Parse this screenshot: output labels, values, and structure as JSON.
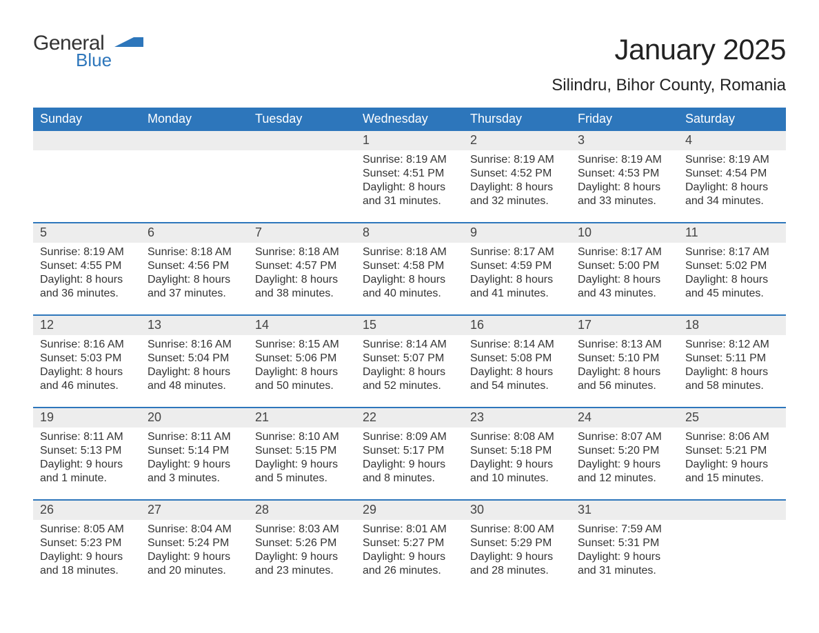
{
  "brand": {
    "word1": "General",
    "word2": "Blue",
    "text_color": "#333333",
    "accent_color": "#2d76bb",
    "icon_color": "#2d76bb"
  },
  "title": "January 2025",
  "location": "Silindru, Bihor County, Romania",
  "colors": {
    "header_bg": "#2d76bb",
    "header_text": "#ffffff",
    "daynum_bg": "#ededed",
    "body_bg": "#ffffff",
    "text": "#333333",
    "rule": "#2d76bb"
  },
  "typography": {
    "title_fontsize": 42,
    "location_fontsize": 24,
    "weekday_fontsize": 18,
    "daynum_fontsize": 18,
    "body_fontsize": 16
  },
  "weekdays": [
    "Sunday",
    "Monday",
    "Tuesday",
    "Wednesday",
    "Thursday",
    "Friday",
    "Saturday"
  ],
  "weeks": [
    [
      {
        "n": "",
        "lines": [
          "",
          "",
          "",
          ""
        ]
      },
      {
        "n": "",
        "lines": [
          "",
          "",
          "",
          ""
        ]
      },
      {
        "n": "",
        "lines": [
          "",
          "",
          "",
          ""
        ]
      },
      {
        "n": "1",
        "lines": [
          "Sunrise: 8:19 AM",
          "Sunset: 4:51 PM",
          "Daylight: 8 hours",
          "and 31 minutes."
        ]
      },
      {
        "n": "2",
        "lines": [
          "Sunrise: 8:19 AM",
          "Sunset: 4:52 PM",
          "Daylight: 8 hours",
          "and 32 minutes."
        ]
      },
      {
        "n": "3",
        "lines": [
          "Sunrise: 8:19 AM",
          "Sunset: 4:53 PM",
          "Daylight: 8 hours",
          "and 33 minutes."
        ]
      },
      {
        "n": "4",
        "lines": [
          "Sunrise: 8:19 AM",
          "Sunset: 4:54 PM",
          "Daylight: 8 hours",
          "and 34 minutes."
        ]
      }
    ],
    [
      {
        "n": "5",
        "lines": [
          "Sunrise: 8:19 AM",
          "Sunset: 4:55 PM",
          "Daylight: 8 hours",
          "and 36 minutes."
        ]
      },
      {
        "n": "6",
        "lines": [
          "Sunrise: 8:18 AM",
          "Sunset: 4:56 PM",
          "Daylight: 8 hours",
          "and 37 minutes."
        ]
      },
      {
        "n": "7",
        "lines": [
          "Sunrise: 8:18 AM",
          "Sunset: 4:57 PM",
          "Daylight: 8 hours",
          "and 38 minutes."
        ]
      },
      {
        "n": "8",
        "lines": [
          "Sunrise: 8:18 AM",
          "Sunset: 4:58 PM",
          "Daylight: 8 hours",
          "and 40 minutes."
        ]
      },
      {
        "n": "9",
        "lines": [
          "Sunrise: 8:17 AM",
          "Sunset: 4:59 PM",
          "Daylight: 8 hours",
          "and 41 minutes."
        ]
      },
      {
        "n": "10",
        "lines": [
          "Sunrise: 8:17 AM",
          "Sunset: 5:00 PM",
          "Daylight: 8 hours",
          "and 43 minutes."
        ]
      },
      {
        "n": "11",
        "lines": [
          "Sunrise: 8:17 AM",
          "Sunset: 5:02 PM",
          "Daylight: 8 hours",
          "and 45 minutes."
        ]
      }
    ],
    [
      {
        "n": "12",
        "lines": [
          "Sunrise: 8:16 AM",
          "Sunset: 5:03 PM",
          "Daylight: 8 hours",
          "and 46 minutes."
        ]
      },
      {
        "n": "13",
        "lines": [
          "Sunrise: 8:16 AM",
          "Sunset: 5:04 PM",
          "Daylight: 8 hours",
          "and 48 minutes."
        ]
      },
      {
        "n": "14",
        "lines": [
          "Sunrise: 8:15 AM",
          "Sunset: 5:06 PM",
          "Daylight: 8 hours",
          "and 50 minutes."
        ]
      },
      {
        "n": "15",
        "lines": [
          "Sunrise: 8:14 AM",
          "Sunset: 5:07 PM",
          "Daylight: 8 hours",
          "and 52 minutes."
        ]
      },
      {
        "n": "16",
        "lines": [
          "Sunrise: 8:14 AM",
          "Sunset: 5:08 PM",
          "Daylight: 8 hours",
          "and 54 minutes."
        ]
      },
      {
        "n": "17",
        "lines": [
          "Sunrise: 8:13 AM",
          "Sunset: 5:10 PM",
          "Daylight: 8 hours",
          "and 56 minutes."
        ]
      },
      {
        "n": "18",
        "lines": [
          "Sunrise: 8:12 AM",
          "Sunset: 5:11 PM",
          "Daylight: 8 hours",
          "and 58 minutes."
        ]
      }
    ],
    [
      {
        "n": "19",
        "lines": [
          "Sunrise: 8:11 AM",
          "Sunset: 5:13 PM",
          "Daylight: 9 hours",
          "and 1 minute."
        ]
      },
      {
        "n": "20",
        "lines": [
          "Sunrise: 8:11 AM",
          "Sunset: 5:14 PM",
          "Daylight: 9 hours",
          "and 3 minutes."
        ]
      },
      {
        "n": "21",
        "lines": [
          "Sunrise: 8:10 AM",
          "Sunset: 5:15 PM",
          "Daylight: 9 hours",
          "and 5 minutes."
        ]
      },
      {
        "n": "22",
        "lines": [
          "Sunrise: 8:09 AM",
          "Sunset: 5:17 PM",
          "Daylight: 9 hours",
          "and 8 minutes."
        ]
      },
      {
        "n": "23",
        "lines": [
          "Sunrise: 8:08 AM",
          "Sunset: 5:18 PM",
          "Daylight: 9 hours",
          "and 10 minutes."
        ]
      },
      {
        "n": "24",
        "lines": [
          "Sunrise: 8:07 AM",
          "Sunset: 5:20 PM",
          "Daylight: 9 hours",
          "and 12 minutes."
        ]
      },
      {
        "n": "25",
        "lines": [
          "Sunrise: 8:06 AM",
          "Sunset: 5:21 PM",
          "Daylight: 9 hours",
          "and 15 minutes."
        ]
      }
    ],
    [
      {
        "n": "26",
        "lines": [
          "Sunrise: 8:05 AM",
          "Sunset: 5:23 PM",
          "Daylight: 9 hours",
          "and 18 minutes."
        ]
      },
      {
        "n": "27",
        "lines": [
          "Sunrise: 8:04 AM",
          "Sunset: 5:24 PM",
          "Daylight: 9 hours",
          "and 20 minutes."
        ]
      },
      {
        "n": "28",
        "lines": [
          "Sunrise: 8:03 AM",
          "Sunset: 5:26 PM",
          "Daylight: 9 hours",
          "and 23 minutes."
        ]
      },
      {
        "n": "29",
        "lines": [
          "Sunrise: 8:01 AM",
          "Sunset: 5:27 PM",
          "Daylight: 9 hours",
          "and 26 minutes."
        ]
      },
      {
        "n": "30",
        "lines": [
          "Sunrise: 8:00 AM",
          "Sunset: 5:29 PM",
          "Daylight: 9 hours",
          "and 28 minutes."
        ]
      },
      {
        "n": "31",
        "lines": [
          "Sunrise: 7:59 AM",
          "Sunset: 5:31 PM",
          "Daylight: 9 hours",
          "and 31 minutes."
        ]
      },
      {
        "n": "",
        "lines": [
          "",
          "",
          "",
          ""
        ]
      }
    ]
  ]
}
